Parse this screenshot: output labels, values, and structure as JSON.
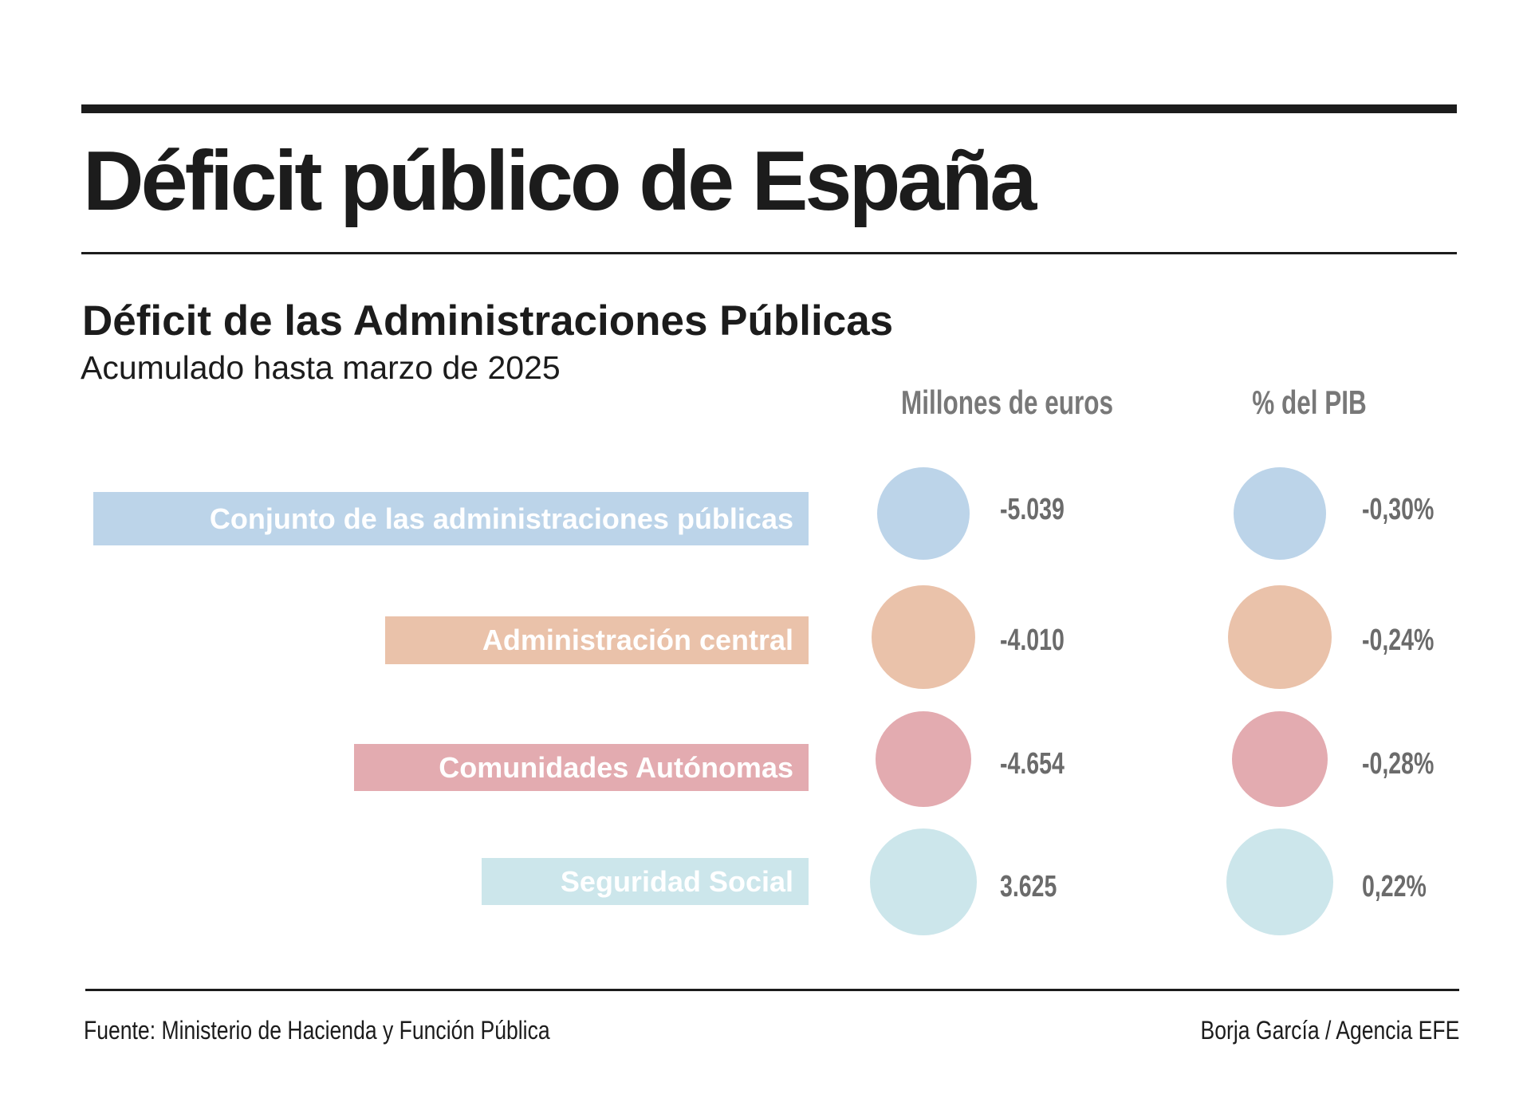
{
  "header": {
    "title": "Déficit público de España"
  },
  "chart_data": {
    "type": "table",
    "title": "Déficit de las Administraciones Públicas",
    "subtitle": "Acumulado hasta marzo de 2025",
    "categories": [
      "Conjunto de las administraciones públicas",
      "Administración central",
      "Comunidades Autónomas",
      "Seguridad Social"
    ],
    "colors": [
      "#bcd4e9",
      "#eac2aa",
      "#e3abb0",
      "#cce6eb"
    ],
    "series": [
      {
        "name": "Millones de euros",
        "values": [
          -5039,
          -4010,
          -4654,
          3625
        ],
        "labels": [
          "-5.039",
          "-4.010",
          "-4.654",
          "3.625"
        ]
      },
      {
        "name": "% del PIB",
        "values": [
          -0.3,
          -0.24,
          -0.28,
          0.22
        ],
        "labels": [
          "-0,30%",
          "-0,24%",
          "-0,28%",
          "0,22%"
        ]
      }
    ]
  },
  "footer": {
    "source": "Fuente: Ministerio de Hacienda y Función Pública",
    "credit": "Borja García / Agencia EFE"
  }
}
